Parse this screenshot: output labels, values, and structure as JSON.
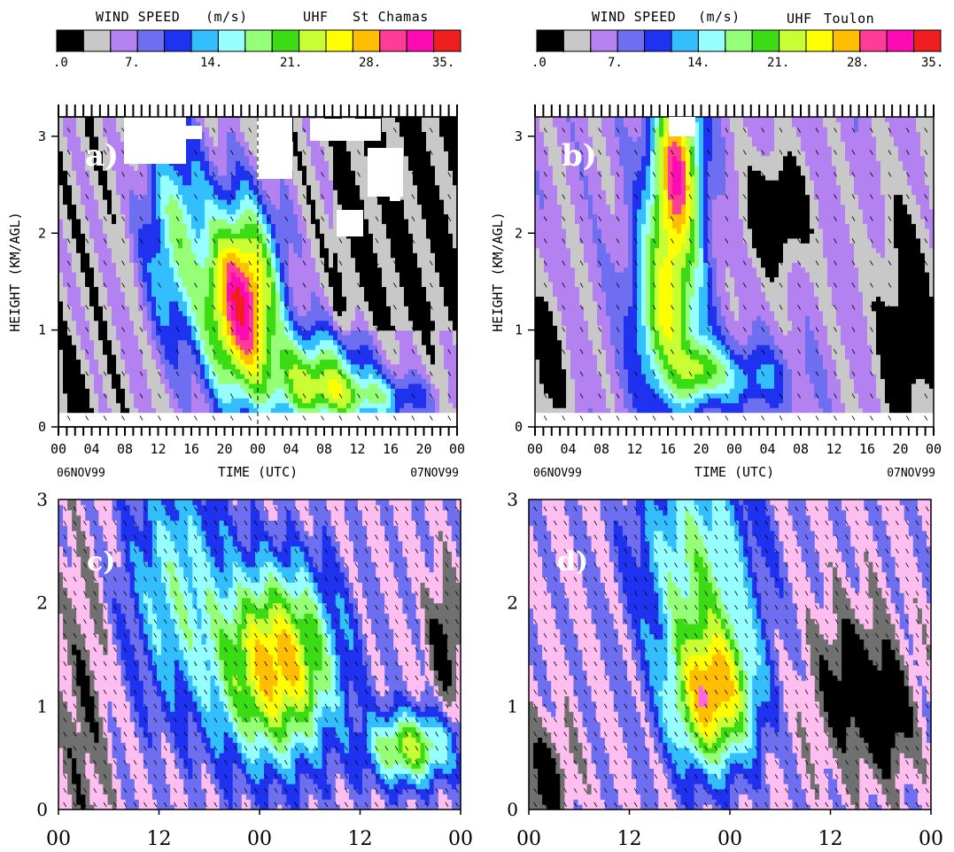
{
  "colorbar_left": {
    "title_parts": [
      "WIND SPEED",
      "(m/s)",
      "UHF",
      "St Chamas"
    ],
    "tick_labels": [
      ".0",
      "7.",
      "14.",
      "21.",
      "28.",
      "35."
    ]
  },
  "colorbar_right": {
    "title_parts": [
      "WIND SPEED",
      "(m/s)",
      "UHF",
      "Toulon"
    ],
    "tick_labels": [
      ".0",
      "7.",
      "14.",
      "21.",
      "28.",
      "35."
    ]
  },
  "palette": [
    "#000000",
    "#c8c8c8",
    "#b482f0",
    "#6e6ef0",
    "#1e32f0",
    "#32beff",
    "#96ffff",
    "#96ff78",
    "#3cdc14",
    "#c8ff32",
    "#ffff00",
    "#ffbe00",
    "#ff3c96",
    "#ff0ab4",
    "#f01e1e"
  ],
  "palette_lower": [
    "#000000",
    "#707070",
    "#ffbef0",
    "#6e6ef0",
    "#1e32f0",
    "#32beff",
    "#96ffff",
    "#96ff78",
    "#3cdc14",
    "#c8ff32",
    "#ffff00",
    "#ffbe00",
    "#ff64e6",
    "#c83cf0",
    "#a000c8"
  ],
  "chart_data": [
    {
      "panel": "a)",
      "type": "heatmap",
      "xlabel": "TIME (UTC)",
      "ylabel": "HEIGHT (KM/AGL)",
      "x_tick_labels": [
        "00",
        "04",
        "08",
        "12",
        "16",
        "20",
        "00",
        "04",
        "08",
        "12",
        "16",
        "20",
        "00"
      ],
      "y_tick_labels": [
        "0",
        "1",
        "2",
        "3"
      ],
      "date_labels": [
        "06NOV99",
        "07NOV99"
      ],
      "ylim": [
        0,
        3.2
      ],
      "value_range_ms": [
        0,
        35
      ],
      "max_speed_ms": 33,
      "max_location": {
        "time_h": 22,
        "height_km": 1.3
      }
    },
    {
      "panel": "b)",
      "type": "heatmap",
      "xlabel": "TIME (UTC)",
      "ylabel": "HEIGHT (KM/AGL)",
      "x_tick_labels": [
        "00",
        "04",
        "08",
        "12",
        "16",
        "20",
        "00",
        "04",
        "08",
        "12",
        "16",
        "20",
        "00"
      ],
      "y_tick_labels": [
        "0",
        "1",
        "2",
        "3"
      ],
      "date_labels": [
        "06NOV99",
        "07NOV99"
      ],
      "ylim": [
        0,
        3.2
      ],
      "value_range_ms": [
        0,
        35
      ],
      "max_speed_ms": 31,
      "max_location": {
        "time_h": 17,
        "height_km": 2.7
      }
    },
    {
      "panel": "c)",
      "type": "heatmap",
      "x_tick_labels": [
        "00",
        "12",
        "00",
        "12",
        "00"
      ],
      "y_tick_labels": [
        "0",
        "1",
        "2",
        "3"
      ],
      "ylim": [
        0,
        3
      ],
      "value_range_ms": [
        0,
        35
      ],
      "max_speed_ms": 30,
      "max_location": {
        "time_h": 26,
        "height_km": 1.5
      }
    },
    {
      "panel": "d)",
      "type": "heatmap",
      "x_tick_labels": [
        "00",
        "12",
        "00",
        "12",
        "00"
      ],
      "y_tick_labels": [
        "0",
        "1",
        "2",
        "3"
      ],
      "ylim": [
        0,
        3
      ],
      "value_range_ms": [
        0,
        35
      ],
      "max_speed_ms": 29,
      "max_location": {
        "time_h": 22,
        "height_km": 1.1
      }
    }
  ]
}
